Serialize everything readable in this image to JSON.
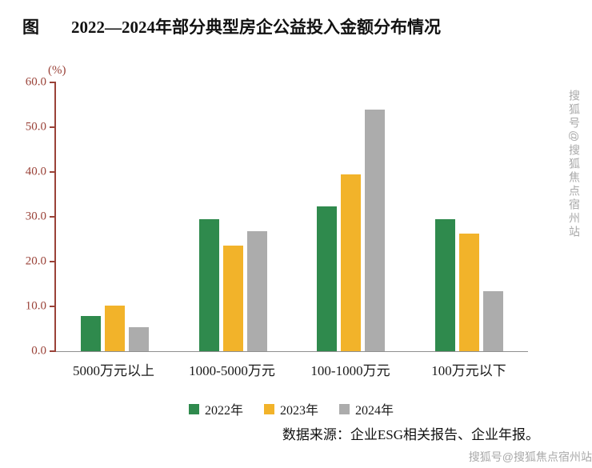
{
  "title": {
    "prefix": "图",
    "text": "2022—2024年部分典型房企公益投入金额分布情况"
  },
  "chart_data": {
    "type": "bar",
    "title": "2022—2024年部分典型房企公益投入金额分布情况",
    "unit_label": "(%)",
    "categories": [
      "5000万元以上",
      "1000-5000万元",
      "100-1000万元",
      "100万元以下"
    ],
    "series": [
      {
        "name": "2022年",
        "color": "#2f8a4d",
        "values": [
          7.9,
          29.5,
          32.3,
          29.5
        ]
      },
      {
        "name": "2023年",
        "color": "#f2b32a",
        "values": [
          10.2,
          23.6,
          39.4,
          26.2
        ]
      },
      {
        "name": "2024年",
        "color": "#acacac",
        "values": [
          5.4,
          26.8,
          53.9,
          13.4
        ]
      }
    ],
    "ylim": [
      0,
      60
    ],
    "yticks": [
      "60.0",
      "50.0",
      "40.0",
      "30.0",
      "20.0",
      "10.0",
      "0.0"
    ],
    "grid": false,
    "legend_position": "bottom",
    "axis_color": "#9a4238",
    "xaxis_line_color": "#8f8f8f"
  },
  "source": "数据来源：企业ESG相关报告、企业年报。",
  "watermark": {
    "vertical": "搜狐号@搜狐焦点宿州站",
    "horizontal": "搜狐号@搜狐焦点宿州站"
  }
}
